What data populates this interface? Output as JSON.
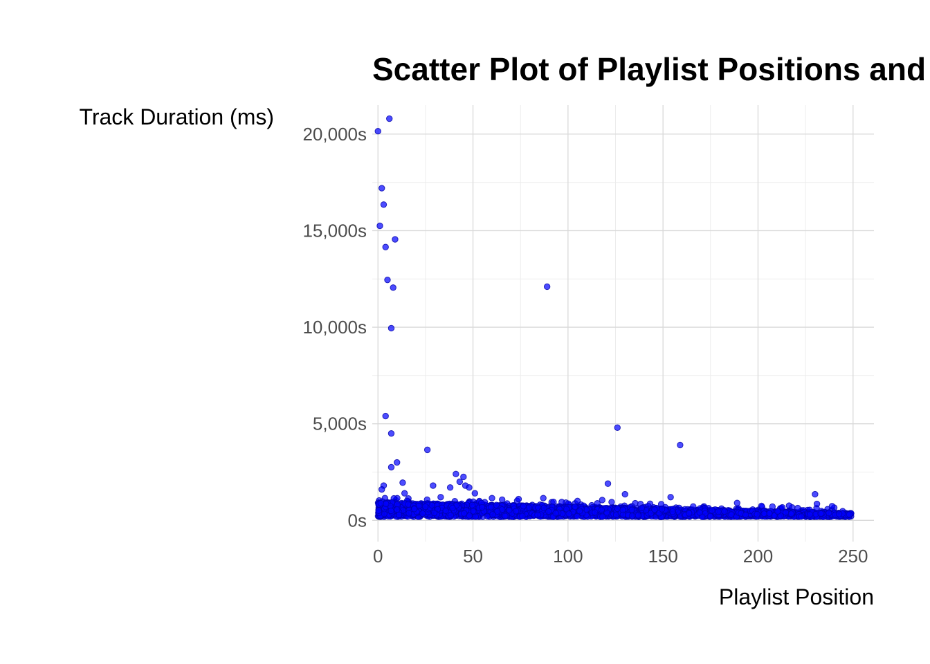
{
  "chart_data": {
    "type": "scatter",
    "title": "Scatter Plot of Playlist Positions and Track Durations",
    "xlabel": "Playlist Position",
    "ylabel": "Track Duration (ms)",
    "xlim": [
      -3,
      261
    ],
    "ylim": [
      -1100,
      21500
    ],
    "x_ticks": [
      0,
      50,
      100,
      150,
      200,
      250
    ],
    "x_tick_labels": [
      "0",
      "50",
      "100",
      "150",
      "200",
      "250"
    ],
    "y_ticks": [
      0,
      5000,
      10000,
      15000,
      20000
    ],
    "y_tick_labels": [
      "0s",
      "5,000s",
      "10,000s",
      "15,000s",
      "20,000s"
    ],
    "grid": true,
    "legend": "none",
    "point_color": "#0000ff",
    "outliers": [
      {
        "x": 0,
        "y": 20150
      },
      {
        "x": 6,
        "y": 20800
      },
      {
        "x": 2,
        "y": 17200
      },
      {
        "x": 3,
        "y": 16350
      },
      {
        "x": 1,
        "y": 15250
      },
      {
        "x": 9,
        "y": 14550
      },
      {
        "x": 4,
        "y": 14150
      },
      {
        "x": 5,
        "y": 12450
      },
      {
        "x": 8,
        "y": 12050
      },
      {
        "x": 89,
        "y": 12100
      },
      {
        "x": 7,
        "y": 9950
      },
      {
        "x": 4,
        "y": 5400
      },
      {
        "x": 7,
        "y": 4500
      },
      {
        "x": 126,
        "y": 4800
      },
      {
        "x": 159,
        "y": 3900
      },
      {
        "x": 26,
        "y": 3650
      },
      {
        "x": 10,
        "y": 3000
      },
      {
        "x": 7,
        "y": 2750
      },
      {
        "x": 41,
        "y": 2400
      },
      {
        "x": 45,
        "y": 2250
      },
      {
        "x": 43,
        "y": 2000
      },
      {
        "x": 13,
        "y": 1950
      },
      {
        "x": 121,
        "y": 1900
      },
      {
        "x": 29,
        "y": 1800
      },
      {
        "x": 46,
        "y": 1800
      },
      {
        "x": 3,
        "y": 1800
      },
      {
        "x": 48,
        "y": 1700
      },
      {
        "x": 38,
        "y": 1700
      },
      {
        "x": 2,
        "y": 1600
      },
      {
        "x": 14,
        "y": 1400
      },
      {
        "x": 51,
        "y": 1400
      },
      {
        "x": 130,
        "y": 1350
      },
      {
        "x": 230,
        "y": 1350
      },
      {
        "x": 154,
        "y": 1200
      },
      {
        "x": 33,
        "y": 1200
      },
      {
        "x": 87,
        "y": 1150
      },
      {
        "x": 231,
        "y": 850
      },
      {
        "x": 189,
        "y": 900
      },
      {
        "x": 60,
        "y": 1150
      },
      {
        "x": 74,
        "y": 1100
      },
      {
        "x": 118,
        "y": 1050
      },
      {
        "x": 105,
        "y": 1000
      }
    ],
    "dense_band": {
      "x_range": [
        0,
        249
      ],
      "y_range": [
        0,
        1100
      ],
      "note_y_center": 350
    }
  }
}
